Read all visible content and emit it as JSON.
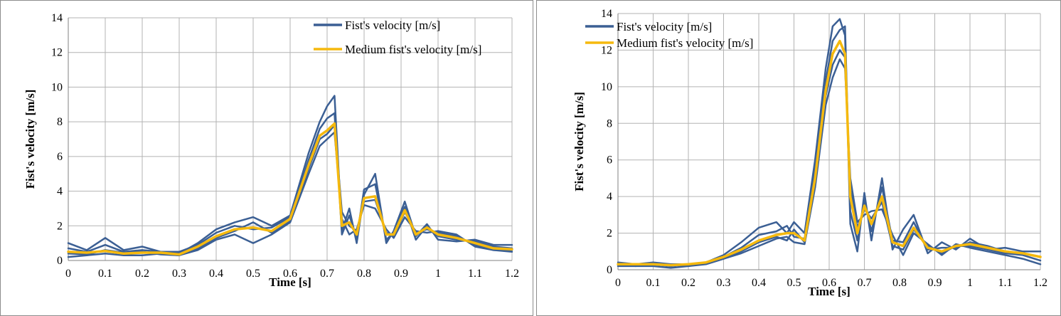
{
  "colors": {
    "trial": "#3b5f94",
    "medium": "#f5b90e",
    "grid": "#b3b3b3",
    "axis": "#808080"
  },
  "chart_data": [
    {
      "type": "line",
      "xlabel": "Time [s]",
      "ylabel": "Fist's velocity [m/s]",
      "xlim": [
        0,
        1.2
      ],
      "ylim": [
        0,
        14
      ],
      "xticks": [
        0,
        0.1,
        0.2,
        0.3,
        0.4,
        0.5,
        0.6,
        0.7,
        0.8,
        0.9,
        1,
        1.1,
        1.2
      ],
      "xtick_labels": [
        "0",
        "0.1",
        "0.2",
        "0.3",
        "0.4",
        "0.5",
        "0.6",
        "0.7",
        "0.8",
        "0.9",
        "1",
        "1.1",
        "1.2"
      ],
      "yticks": [
        0,
        2,
        4,
        6,
        8,
        10,
        12,
        14
      ],
      "grid": true,
      "legend": "top-right",
      "legend_entries": [
        "Fist's velocity [m/s]",
        "Medium fist's velocity [m/s]"
      ],
      "x": [
        0,
        0.05,
        0.1,
        0.15,
        0.2,
        0.25,
        0.3,
        0.35,
        0.4,
        0.45,
        0.5,
        0.55,
        0.6,
        0.65,
        0.68,
        0.7,
        0.72,
        0.74,
        0.76,
        0.78,
        0.8,
        0.83,
        0.86,
        0.88,
        0.91,
        0.94,
        0.97,
        1.0,
        1.05,
        1.1,
        1.15,
        1.2
      ],
      "series": [
        {
          "name": "Medium fist's velocity [m/s]",
          "values": [
            0.5,
            0.45,
            0.55,
            0.4,
            0.45,
            0.45,
            0.35,
            0.8,
            1.4,
            1.8,
            1.9,
            1.7,
            2.4,
            5.5,
            7.2,
            7.5,
            7.9,
            2.0,
            2.2,
            1.5,
            3.6,
            3.7,
            1.5,
            1.5,
            2.9,
            1.5,
            1.9,
            1.5,
            1.3,
            1.0,
            0.7,
            0.65
          ]
        },
        {
          "values": [
            1.0,
            0.6,
            1.3,
            0.6,
            0.8,
            0.5,
            0.4,
            1.0,
            1.8,
            2.2,
            2.5,
            2.0,
            2.6,
            6.2,
            8.0,
            8.9,
            9.5,
            1.7,
            3.0,
            1.0,
            3.8,
            5.0,
            1.0,
            1.7,
            3.4,
            1.4,
            2.1,
            1.2,
            1.1,
            1.2,
            0.9,
            0.9
          ]
        },
        {
          "values": [
            0.2,
            0.3,
            0.4,
            0.3,
            0.3,
            0.4,
            0.3,
            0.6,
            1.2,
            1.5,
            1.0,
            1.5,
            2.2,
            5.0,
            6.6,
            7.0,
            7.4,
            2.4,
            1.5,
            1.8,
            3.2,
            3.0,
            1.8,
            1.3,
            2.5,
            1.7,
            1.6,
            1.7,
            1.5,
            0.8,
            0.6,
            0.5
          ]
        },
        {
          "values": [
            0.7,
            0.5,
            0.9,
            0.5,
            0.6,
            0.5,
            0.5,
            0.9,
            1.6,
            2.0,
            1.8,
            1.9,
            2.5,
            5.8,
            7.6,
            8.2,
            8.5,
            1.5,
            2.6,
            1.3,
            4.1,
            4.4,
            1.2,
            1.6,
            3.1,
            1.2,
            2.0,
            1.4,
            1.2,
            1.1,
            0.8,
            0.7
          ]
        },
        {
          "values": [
            0.4,
            0.35,
            0.6,
            0.45,
            0.5,
            0.35,
            0.3,
            0.7,
            1.3,
            1.7,
            2.2,
            1.6,
            2.3,
            5.3,
            7.0,
            7.3,
            7.8,
            2.8,
            2.0,
            1.7,
            3.4,
            3.5,
            1.6,
            1.4,
            2.8,
            1.6,
            1.8,
            1.6,
            1.4,
            0.9,
            0.6,
            0.6
          ]
        }
      ]
    },
    {
      "type": "line",
      "xlabel": "Time [s]",
      "ylabel": "Fist's velocity [m/s]",
      "xlim": [
        0,
        1.2
      ],
      "ylim": [
        0,
        14
      ],
      "xticks": [
        0,
        0.1,
        0.2,
        0.3,
        0.4,
        0.5,
        0.6,
        0.7,
        0.8,
        0.9,
        1,
        1.1,
        1.2
      ],
      "xtick_labels": [
        "0",
        "0.1",
        "0.2",
        "0.3",
        "0.4",
        "0.5",
        "0.6",
        "0.7",
        "0.8",
        "0.9",
        "1",
        "1.1",
        "1.2"
      ],
      "yticks": [
        0,
        2,
        4,
        6,
        8,
        10,
        12,
        14
      ],
      "grid": true,
      "legend": "top-left",
      "legend_entries": [
        "Fist's velocity [m/s]",
        "Medium fist's velocity [m/s]"
      ],
      "x": [
        0,
        0.05,
        0.1,
        0.15,
        0.2,
        0.25,
        0.3,
        0.35,
        0.4,
        0.45,
        0.48,
        0.5,
        0.53,
        0.56,
        0.59,
        0.61,
        0.63,
        0.645,
        0.66,
        0.68,
        0.7,
        0.72,
        0.75,
        0.78,
        0.81,
        0.84,
        0.88,
        0.92,
        0.96,
        1.0,
        1.05,
        1.1,
        1.15,
        1.2
      ],
      "series": [
        {
          "name": "Medium fist's velocity [m/s]",
          "values": [
            0.3,
            0.3,
            0.3,
            0.25,
            0.3,
            0.4,
            0.7,
            1.1,
            1.6,
            1.9,
            2.0,
            2.0,
            1.6,
            5.0,
            9.8,
            11.8,
            12.5,
            11.8,
            4.0,
            2.0,
            3.5,
            2.5,
            4.0,
            1.5,
            1.3,
            2.3,
            1.2,
            1.0,
            1.3,
            1.4,
            1.2,
            1.0,
            0.9,
            0.7
          ]
        },
        {
          "values": [
            0.4,
            0.3,
            0.4,
            0.3,
            0.3,
            0.4,
            0.8,
            1.5,
            2.3,
            2.6,
            2.0,
            2.6,
            2.0,
            6.0,
            11.0,
            13.3,
            13.7,
            12.8,
            2.5,
            1.0,
            4.2,
            1.6,
            5.0,
            1.1,
            2.2,
            3.0,
            0.9,
            1.5,
            1.1,
            1.7,
            1.1,
            1.2,
            1.0,
            1.0
          ]
        },
        {
          "values": [
            0.2,
            0.2,
            0.2,
            0.1,
            0.2,
            0.3,
            0.6,
            0.9,
            1.3,
            1.7,
            1.8,
            1.5,
            1.4,
            4.5,
            9.0,
            10.5,
            11.5,
            11.0,
            5.0,
            2.6,
            3.0,
            3.2,
            3.3,
            1.9,
            0.8,
            2.0,
            1.4,
            0.8,
            1.4,
            1.2,
            1.0,
            0.8,
            0.6,
            0.3
          ]
        },
        {
          "values": [
            0.3,
            0.3,
            0.3,
            0.3,
            0.2,
            0.4,
            0.7,
            1.2,
            1.9,
            2.1,
            2.4,
            1.8,
            1.7,
            5.5,
            10.3,
            12.5,
            13.1,
            13.3,
            3.2,
            1.6,
            3.8,
            2.1,
            4.5,
            1.6,
            1.5,
            2.6,
            1.1,
            1.2,
            1.2,
            1.5,
            1.3,
            1.0,
            0.9,
            0.7
          ]
        },
        {
          "values": [
            0.3,
            0.2,
            0.3,
            0.2,
            0.3,
            0.4,
            0.6,
            1.0,
            1.5,
            1.8,
            1.6,
            2.2,
            1.5,
            4.8,
            9.5,
            11.2,
            12.0,
            11.6,
            4.4,
            2.3,
            3.3,
            2.8,
            3.7,
            1.3,
            1.1,
            2.2,
            1.3,
            0.9,
            1.3,
            1.3,
            1.1,
            0.9,
            0.8,
            0.5
          ]
        }
      ]
    }
  ]
}
